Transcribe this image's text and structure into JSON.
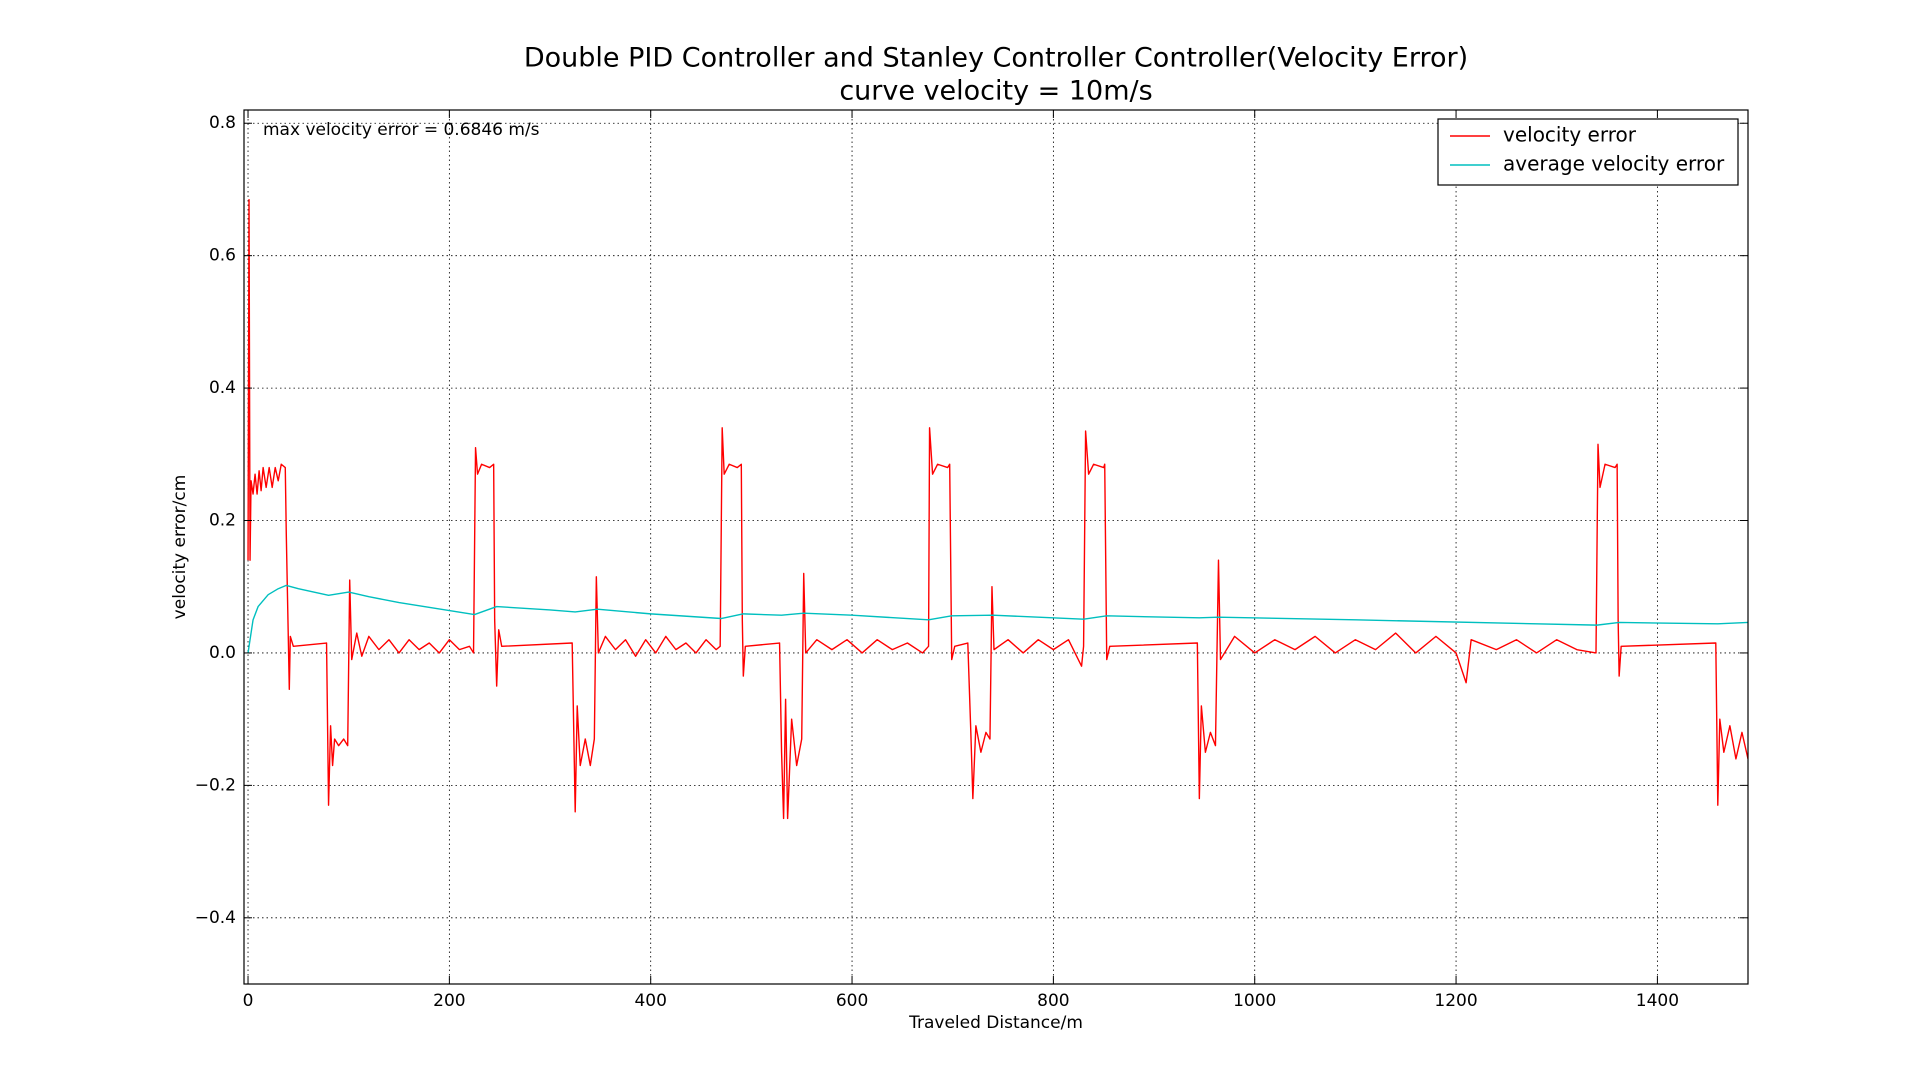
{
  "chart_data": {
    "type": "line",
    "title": "Double PID Controller and Stanley Controller Controller(Velocity Error)",
    "subtitle": "curve velocity = 10m/s",
    "x_label": "Traveled Distance/m",
    "y_label": "velocity error/cm",
    "annotation": "max velocity error = 0.6846 m/s",
    "xlim": [
      -4,
      1490
    ],
    "ylim": [
      -0.5,
      0.82
    ],
    "xticks": [
      0,
      200,
      400,
      600,
      800,
      1000,
      1200,
      1400
    ],
    "yticks": [
      {
        "value": -0.4,
        "label": "−0.4"
      },
      {
        "value": -0.2,
        "label": "−0.2"
      },
      {
        "value": 0,
        "label": "0.0"
      },
      0.2,
      0.4,
      0.6,
      0.8
    ],
    "grid": true,
    "legend": "upper right",
    "series": [
      {
        "name": "velocity error",
        "color": "#ff0000",
        "x": [
          0,
          1,
          2,
          3,
          5,
          7,
          9,
          11,
          13,
          15,
          18,
          21,
          24,
          27,
          30,
          33,
          37,
          38,
          41,
          42,
          45,
          78,
          80,
          82,
          84,
          86,
          90,
          95,
          99,
          101,
          103,
          108,
          113,
          120,
          130,
          140,
          150,
          160,
          170,
          180,
          190,
          200,
          210,
          220,
          224,
          226,
          228,
          232,
          240,
          244,
          245,
          247,
          249,
          252,
          322,
          325,
          327,
          330,
          335,
          340,
          344,
          346,
          348,
          355,
          365,
          375,
          385,
          395,
          405,
          415,
          425,
          435,
          445,
          455,
          465,
          469,
          471,
          473,
          478,
          486,
          490,
          491,
          492,
          494,
          528,
          530,
          532,
          534,
          536,
          540,
          545,
          550,
          552,
          554,
          565,
          580,
          595,
          610,
          625,
          640,
          655,
          670,
          676,
          677,
          680,
          685,
          695,
          697,
          699,
          702,
          715,
          718,
          720,
          723,
          728,
          733,
          737,
          739,
          741,
          755,
          770,
          785,
          800,
          815,
          828,
          830,
          832,
          835,
          840,
          850,
          851,
          853,
          856,
          943,
          945,
          947,
          951,
          956,
          961,
          964,
          966,
          980,
          1000,
          1020,
          1040,
          1060,
          1080,
          1100,
          1120,
          1140,
          1160,
          1180,
          1200,
          1210,
          1215,
          1240,
          1260,
          1280,
          1300,
          1320,
          1339,
          1341,
          1343,
          1348,
          1358,
          1360,
          1361,
          1362,
          1364,
          1458,
          1460,
          1462,
          1466,
          1472,
          1478,
          1484,
          1490
        ],
        "values": [
          0.14,
          0.6846,
          0.14,
          0.26,
          0.24,
          0.27,
          0.24,
          0.275,
          0.245,
          0.28,
          0.25,
          0.28,
          0.25,
          0.28,
          0.26,
          0.285,
          0.28,
          0.18,
          -0.055,
          0.025,
          0.01,
          0.015,
          -0.23,
          -0.11,
          -0.17,
          -0.13,
          -0.14,
          -0.13,
          -0.14,
          0.11,
          -0.01,
          0.03,
          -0.005,
          0.025,
          0.005,
          0.02,
          0.0,
          0.02,
          0.005,
          0.015,
          0.0,
          0.02,
          0.005,
          0.01,
          0.0,
          0.31,
          0.27,
          0.285,
          0.28,
          0.285,
          0.05,
          -0.05,
          0.035,
          0.01,
          0.015,
          -0.24,
          -0.08,
          -0.17,
          -0.13,
          -0.17,
          -0.13,
          0.115,
          0.0,
          0.025,
          0.005,
          0.02,
          -0.005,
          0.02,
          0.0,
          0.025,
          0.005,
          0.015,
          0.0,
          0.02,
          0.005,
          0.01,
          0.34,
          0.27,
          0.285,
          0.28,
          0.285,
          0.05,
          -0.035,
          0.01,
          0.015,
          -0.15,
          -0.25,
          -0.07,
          -0.25,
          -0.1,
          -0.17,
          -0.13,
          0.12,
          0.0,
          0.02,
          0.005,
          0.02,
          0.0,
          0.02,
          0.005,
          0.015,
          0.0,
          0.01,
          0.34,
          0.27,
          0.285,
          0.28,
          0.285,
          -0.01,
          0.01,
          0.015,
          -0.12,
          -0.22,
          -0.11,
          -0.15,
          -0.12,
          -0.13,
          0.1,
          0.005,
          0.02,
          0.0,
          0.02,
          0.005,
          0.02,
          -0.02,
          0.01,
          0.335,
          0.27,
          0.285,
          0.28,
          0.285,
          -0.01,
          0.01,
          0.015,
          -0.22,
          -0.08,
          -0.15,
          -0.12,
          -0.14,
          0.14,
          -0.01,
          0.025,
          0.0,
          0.02,
          0.005,
          0.025,
          0.0,
          0.02,
          0.005,
          0.03,
          0.0,
          0.025,
          0.0,
          -0.045,
          0.02,
          0.005,
          0.02,
          0.0,
          0.02,
          0.005,
          0.0,
          0.315,
          0.25,
          0.285,
          0.28,
          0.285,
          0.05,
          -0.035,
          0.01,
          0.015,
          -0.23,
          -0.1,
          -0.15,
          -0.11,
          -0.16,
          -0.12,
          -0.16
        ]
      },
      {
        "name": "average velocity error",
        "color": "#00bfbf",
        "x": [
          0,
          5,
          10,
          20,
          30,
          38,
          50,
          80,
          100,
          120,
          150,
          200,
          225,
          247,
          300,
          325,
          347,
          400,
          470,
          492,
          530,
          552,
          600,
          676,
          699,
          740,
          830,
          853,
          945,
          964,
          1100,
          1340,
          1362,
          1460,
          1490
        ],
        "values": [
          0.0,
          0.05,
          0.07,
          0.088,
          0.097,
          0.102,
          0.097,
          0.087,
          0.092,
          0.085,
          0.076,
          0.064,
          0.058,
          0.07,
          0.065,
          0.062,
          0.066,
          0.059,
          0.052,
          0.059,
          0.057,
          0.06,
          0.057,
          0.05,
          0.056,
          0.057,
          0.051,
          0.056,
          0.053,
          0.054,
          0.05,
          0.042,
          0.046,
          0.044,
          0.046
        ]
      }
    ]
  }
}
